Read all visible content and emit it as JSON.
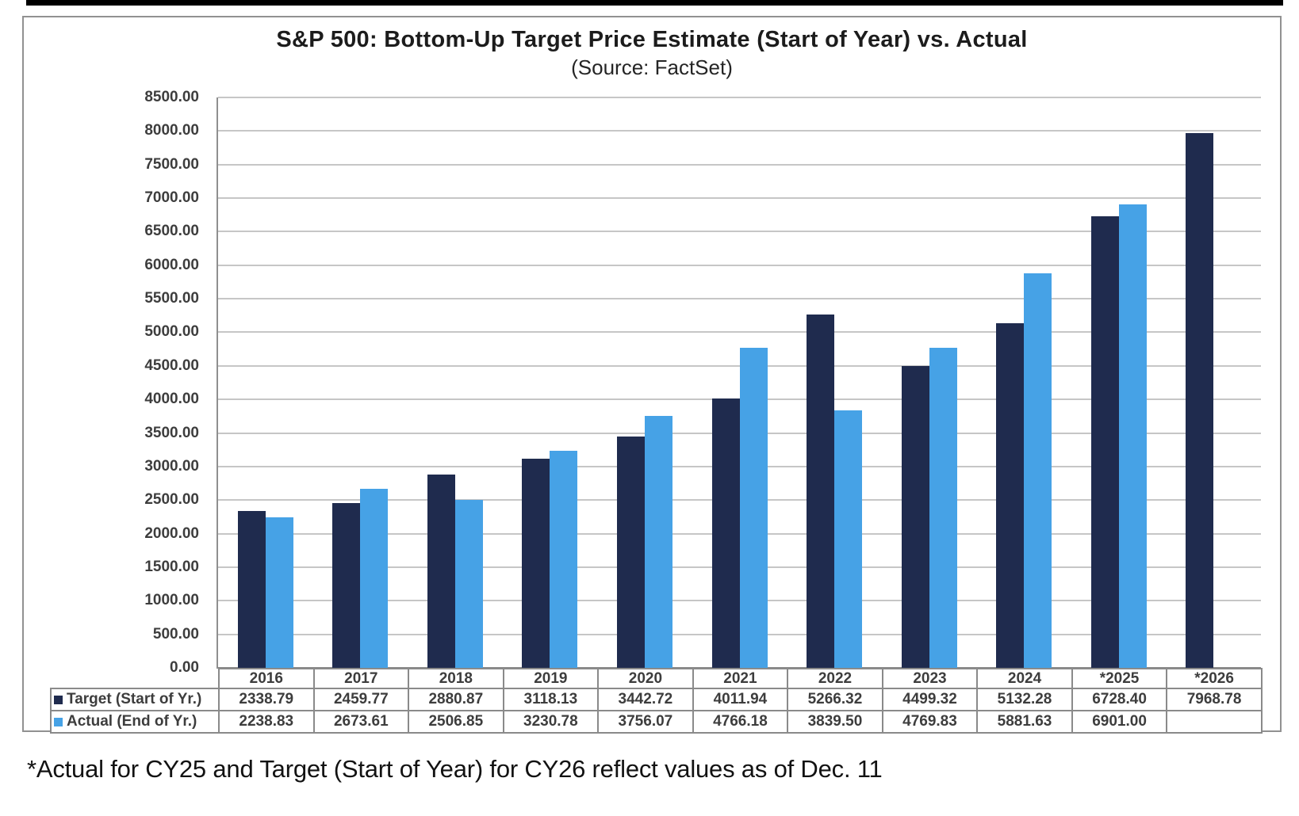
{
  "page": {
    "footnote": "*Actual for CY25 and Target (Start of Year) for CY26 reflect values as of Dec. 11"
  },
  "colors": {
    "target_navy": "#1f2b4e",
    "actual_blue": "#46a2e6",
    "gridline": "#c6c6c6",
    "axis": "#8a8a8a",
    "label_text": "#3d3d3d"
  },
  "chart_data": {
    "type": "bar",
    "title": "S&P 500: Bottom-Up Target Price Estimate (Start of Year) vs. Actual",
    "subtitle": "(Source: FactSet)",
    "categories": [
      "2016",
      "2017",
      "2018",
      "2019",
      "2020",
      "2021",
      "2022",
      "2023",
      "2024",
      "*2025",
      "*2026"
    ],
    "series": [
      {
        "name": "Target (Start of Yr.)",
        "color": "#1f2b4e",
        "values": [
          2338.79,
          2459.77,
          2880.87,
          3118.13,
          3442.72,
          4011.94,
          5266.32,
          4499.32,
          5132.28,
          6728.4,
          7968.78
        ]
      },
      {
        "name": "Actual (End of Yr.)",
        "color": "#46a2e6",
        "values": [
          2238.83,
          2673.61,
          2506.85,
          3230.78,
          3756.07,
          4766.18,
          3839.5,
          4769.83,
          5881.63,
          6901.0,
          null
        ]
      }
    ],
    "xlabel": "",
    "ylabel": "",
    "ylim": [
      0,
      8500
    ],
    "ytick_step": 500,
    "ytick_decimals": 2,
    "grid": true,
    "legend_position": "table-left",
    "value_decimals": 2
  }
}
